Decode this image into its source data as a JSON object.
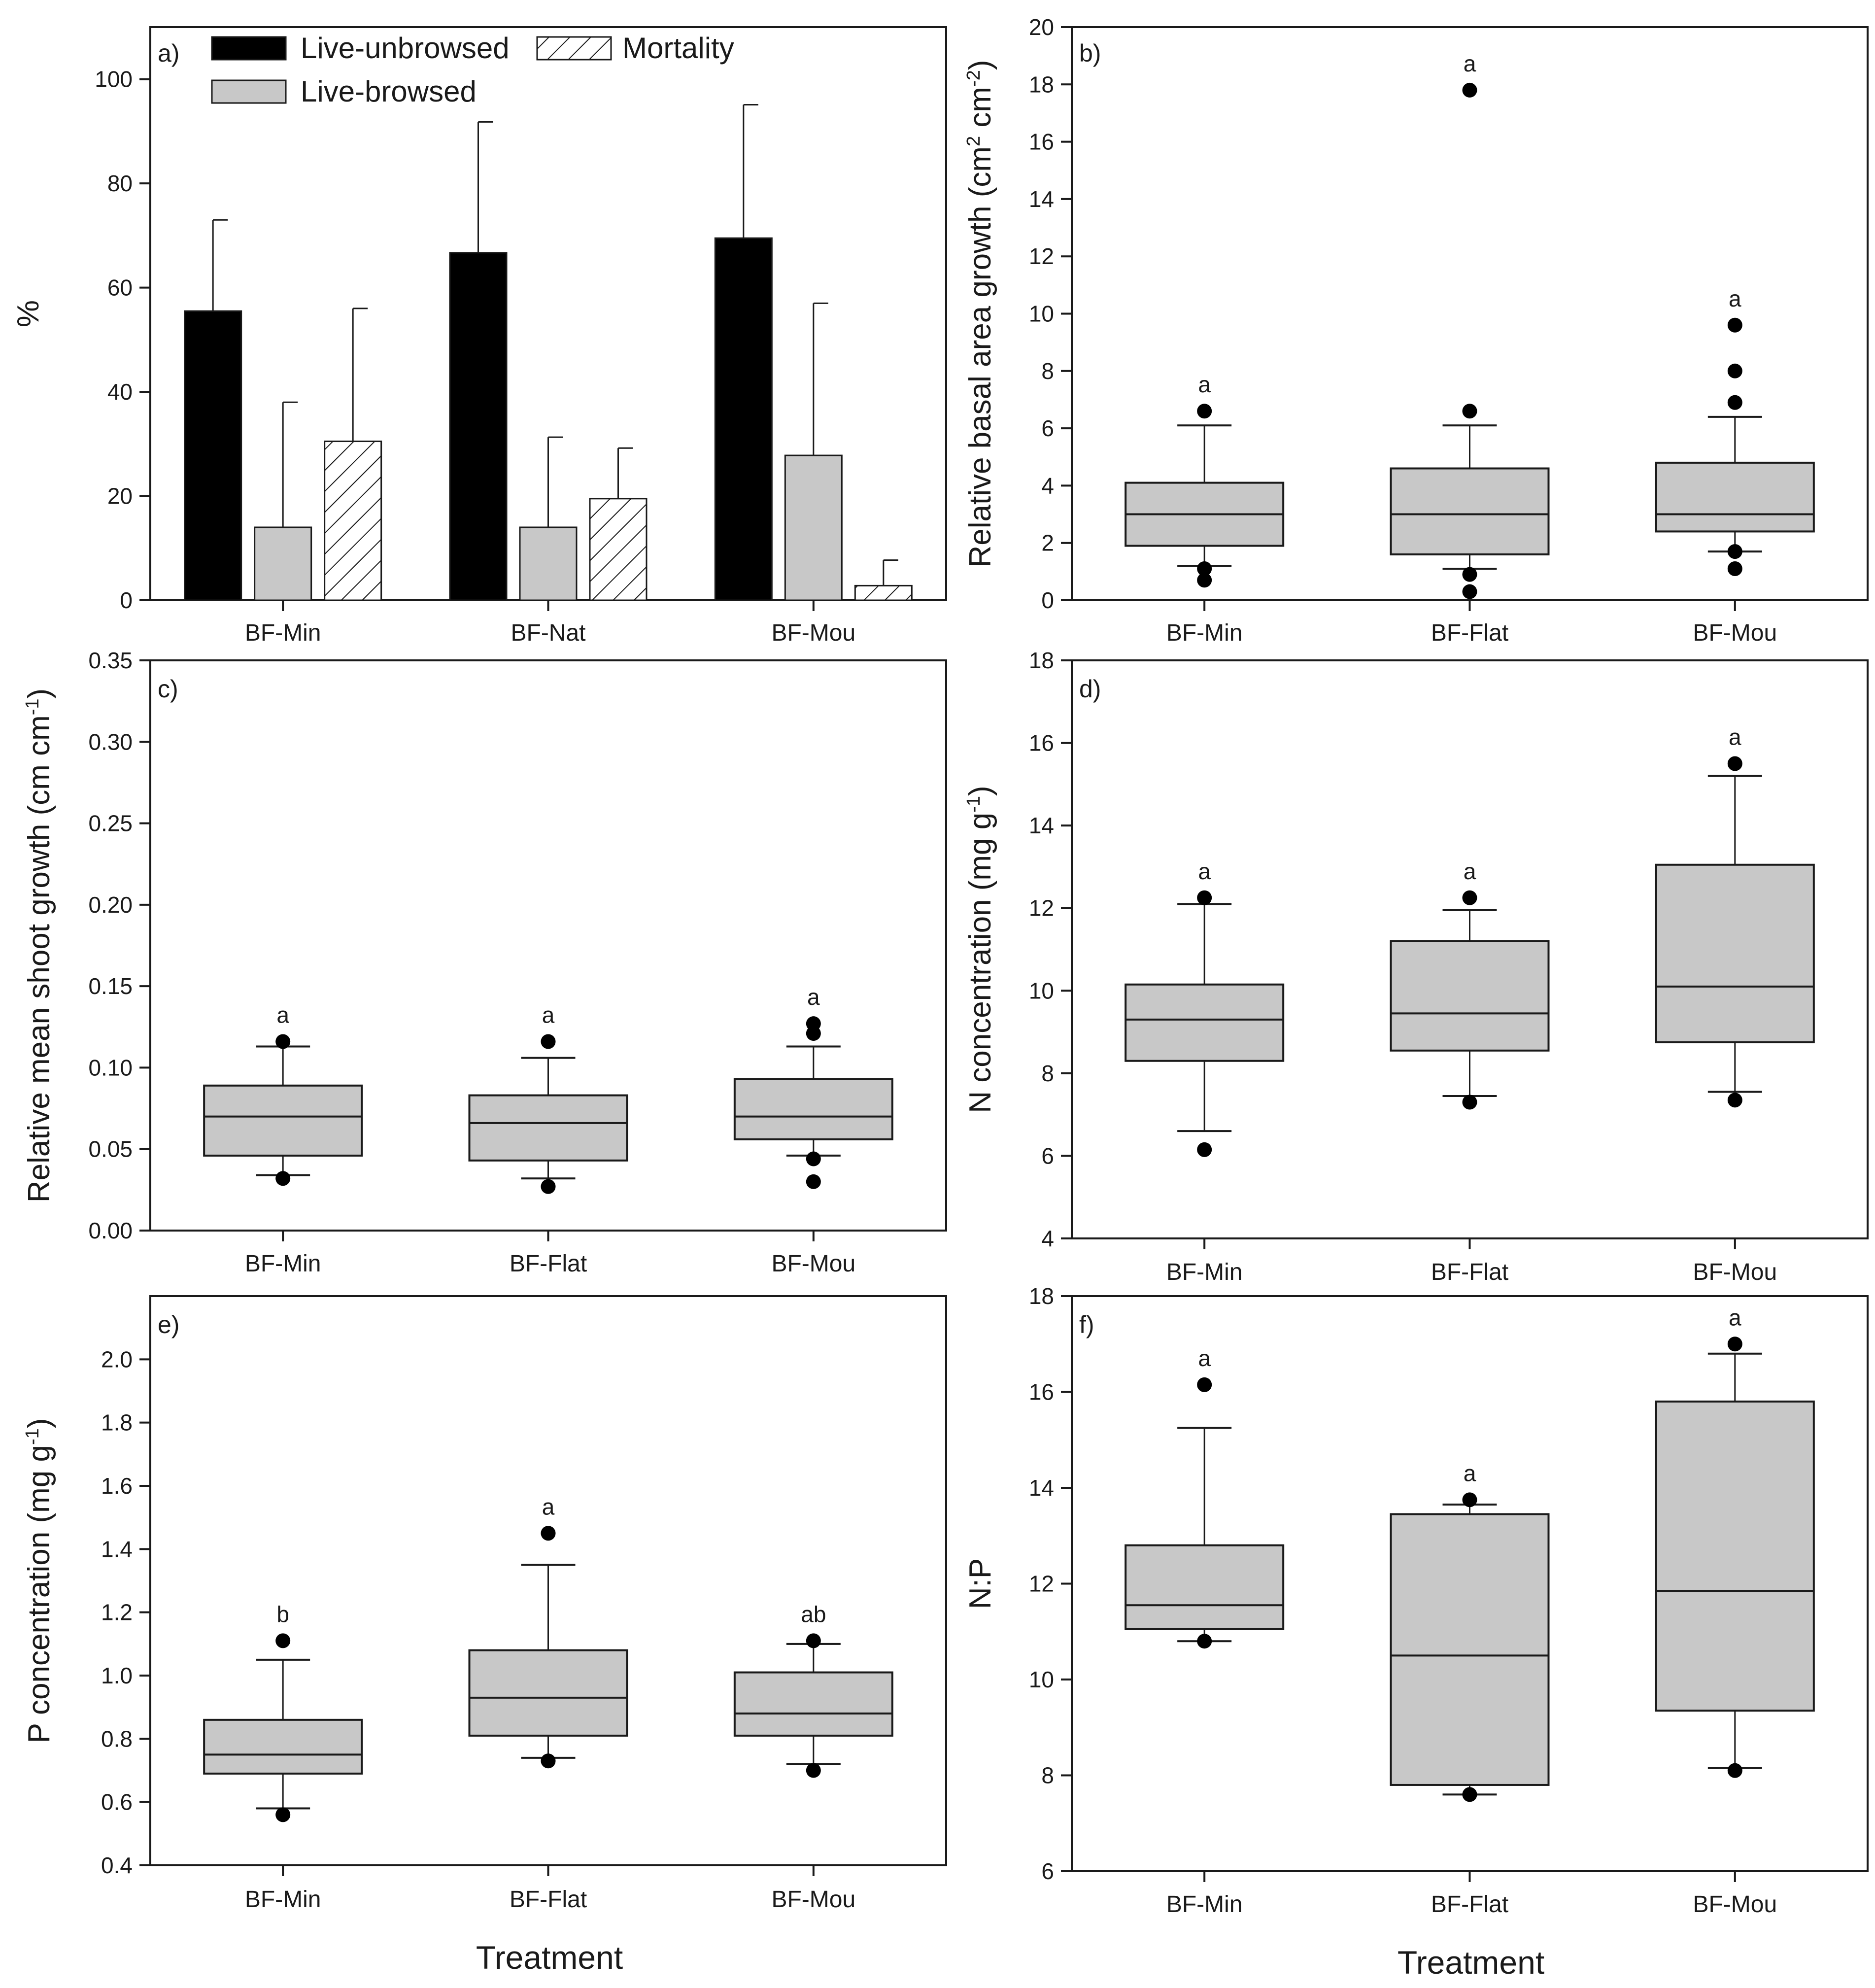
{
  "colors": {
    "live_unbrowsed": "#000000",
    "live_browsed": "#c8c8c8",
    "mortality": "#ffffff",
    "box_fill": "#c8c8c8",
    "axis": "#1a1a1a"
  },
  "figure": {
    "x_axis_title": "Treatment"
  },
  "chart_data": [
    {
      "panel": "a)",
      "type": "bar",
      "ylabel": "%",
      "ylim": [
        0,
        110
      ],
      "yticks": [
        0,
        20,
        40,
        60,
        80,
        100
      ],
      "categories": [
        "BF-Min",
        "BF-Nat",
        "BF-Mou"
      ],
      "legend": {
        "position": "top-left",
        "entries": [
          "Live-unbrowsed",
          "Live-browsed",
          "Mortality"
        ]
      },
      "series": [
        {
          "name": "Live-unbrowsed",
          "values": [
            55.5,
            66.7,
            69.5
          ],
          "err_upper": [
            73,
            91.8,
            95.1
          ]
        },
        {
          "name": "Live-browsed",
          "values": [
            14,
            14,
            27.8
          ],
          "err_upper": [
            38,
            31.3,
            57
          ]
        },
        {
          "name": "Mortality",
          "values": [
            30.5,
            19.5,
            2.8
          ],
          "err_upper": [
            56,
            29.2,
            7.7
          ]
        }
      ]
    },
    {
      "panel": "b)",
      "type": "box",
      "ylabel": "Relative basal area growth (cm",
      "ylabel_sup1": "2",
      "ylabel_mid": " cm",
      "ylabel_sup2": "-2",
      "ylabel_end": ")",
      "ylim": [
        0,
        20
      ],
      "yticks": [
        0,
        2,
        4,
        6,
        8,
        10,
        12,
        14,
        16,
        18,
        20
      ],
      "categories": [
        "BF-Min",
        "BF-Flat",
        "BF-Mou"
      ],
      "boxes": [
        {
          "q1": 1.9,
          "median": 3.0,
          "q3": 4.1,
          "whisker_low": 1.2,
          "whisker_high": 6.1,
          "outliers": [
            6.6,
            1.1,
            0.7
          ],
          "letter": "a"
        },
        {
          "q1": 1.6,
          "median": 3.0,
          "q3": 4.6,
          "whisker_low": 1.1,
          "whisker_high": 6.1,
          "outliers": [
            17.8,
            6.6,
            0.9,
            0.3
          ],
          "letter": "a"
        },
        {
          "q1": 2.4,
          "median": 3.0,
          "q3": 4.8,
          "whisker_low": 1.7,
          "whisker_high": 6.4,
          "outliers": [
            9.6,
            8.0,
            6.9,
            1.7,
            1.1
          ],
          "letter": "a"
        }
      ]
    },
    {
      "panel": "c)",
      "type": "box",
      "ylabel": "Relative mean shoot growth (cm cm",
      "ylabel_sup2": "-1",
      "ylabel_end": ")",
      "ylim": [
        0,
        0.35
      ],
      "yticks": [
        "0.00",
        "0.05",
        "0.10",
        "0.15",
        "0.20",
        "0.25",
        "0.30",
        "0.35"
      ],
      "categories": [
        "BF-Min",
        "BF-Flat",
        "BF-Mou"
      ],
      "boxes": [
        {
          "q1": 0.046,
          "median": 0.07,
          "q3": 0.089,
          "whisker_low": 0.034,
          "whisker_high": 0.113,
          "outliers": [
            0.116,
            0.032
          ],
          "letter": "a"
        },
        {
          "q1": 0.043,
          "median": 0.066,
          "q3": 0.083,
          "whisker_low": 0.032,
          "whisker_high": 0.106,
          "outliers": [
            0.116,
            0.027
          ],
          "letter": "a"
        },
        {
          "q1": 0.056,
          "median": 0.07,
          "q3": 0.093,
          "whisker_low": 0.046,
          "whisker_high": 0.113,
          "outliers": [
            0.127,
            0.121,
            0.044,
            0.03
          ],
          "letter": "a"
        }
      ]
    },
    {
      "panel": "d)",
      "type": "box",
      "ylabel": "N concentration (mg g",
      "ylabel_sup2": "-1",
      "ylabel_end": ")",
      "ylim": [
        4,
        18
      ],
      "yticks": [
        4,
        6,
        8,
        10,
        12,
        14,
        16,
        18
      ],
      "categories": [
        "BF-Min",
        "BF-Flat",
        "BF-Mou"
      ],
      "boxes": [
        {
          "q1": 8.3,
          "median": 9.3,
          "q3": 10.15,
          "whisker_low": 6.6,
          "whisker_high": 12.1,
          "outliers": [
            12.25,
            6.15
          ],
          "letter": "a"
        },
        {
          "q1": 8.55,
          "median": 9.45,
          "q3": 11.2,
          "whisker_low": 7.45,
          "whisker_high": 11.95,
          "outliers": [
            12.25,
            7.3
          ],
          "letter": "a"
        },
        {
          "q1": 8.75,
          "median": 10.1,
          "q3": 13.05,
          "whisker_low": 7.55,
          "whisker_high": 15.2,
          "outliers": [
            15.5,
            7.35
          ],
          "letter": "a"
        }
      ]
    },
    {
      "panel": "e)",
      "type": "box",
      "ylabel": "P concentration (mg g",
      "ylabel_sup2": "-1",
      "ylabel_end": ")",
      "ylim": [
        0.4,
        2.2
      ],
      "yticks": [
        "0.4",
        "0.6",
        "0.8",
        "1.0",
        "1.2",
        "1.4",
        "1.6",
        "1.8",
        "2.0"
      ],
      "categories": [
        "BF-Min",
        "BF-Flat",
        "BF-Mou"
      ],
      "boxes": [
        {
          "q1": 0.69,
          "median": 0.75,
          "q3": 0.86,
          "whisker_low": 0.58,
          "whisker_high": 1.05,
          "outliers": [
            1.11,
            0.56
          ],
          "letter": "b"
        },
        {
          "q1": 0.81,
          "median": 0.93,
          "q3": 1.08,
          "whisker_low": 0.74,
          "whisker_high": 1.35,
          "outliers": [
            1.45,
            0.73
          ],
          "letter": "a"
        },
        {
          "q1": 0.81,
          "median": 0.88,
          "q3": 1.01,
          "whisker_low": 0.72,
          "whisker_high": 1.1,
          "outliers": [
            1.11,
            0.7
          ],
          "letter": "ab"
        }
      ]
    },
    {
      "panel": "f)",
      "type": "box",
      "ylabel": "N:P",
      "ylim": [
        6,
        18
      ],
      "yticks": [
        6,
        8,
        10,
        12,
        14,
        16,
        18
      ],
      "categories": [
        "BF-Min",
        "BF-Flat",
        "BF-Mou"
      ],
      "boxes": [
        {
          "q1": 11.05,
          "median": 11.55,
          "q3": 12.8,
          "whisker_low": 10.8,
          "whisker_high": 15.25,
          "outliers": [
            16.15,
            10.8
          ],
          "letter": "a"
        },
        {
          "q1": 7.8,
          "median": 10.5,
          "q3": 13.45,
          "whisker_low": 7.6,
          "whisker_high": 13.65,
          "outliers": [
            13.75,
            7.6
          ],
          "letter": "a"
        },
        {
          "q1": 9.35,
          "median": 11.85,
          "q3": 15.8,
          "whisker_low": 8.15,
          "whisker_high": 16.8,
          "outliers": [
            17.0,
            8.1
          ],
          "letter": "a"
        }
      ]
    }
  ]
}
